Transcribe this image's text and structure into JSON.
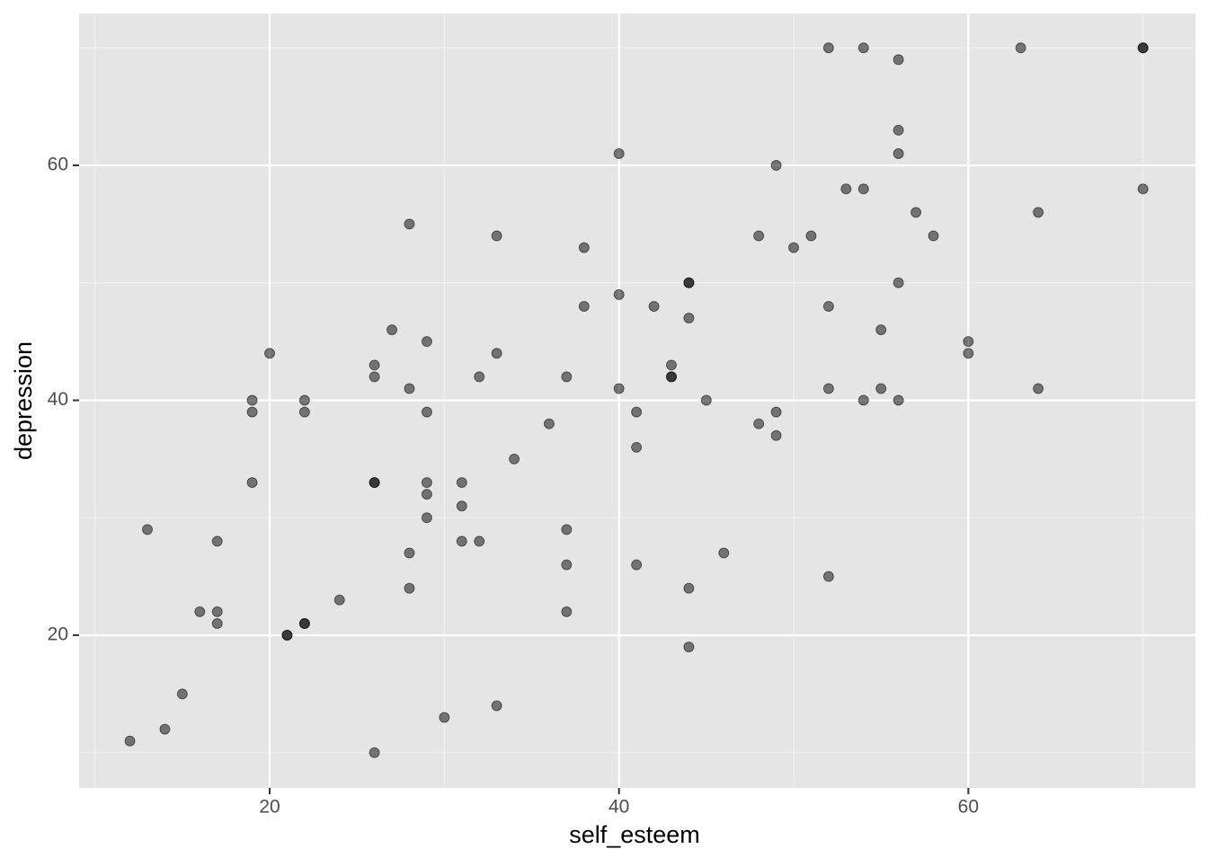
{
  "chart_data": {
    "type": "scatter",
    "x_label": "self_esteem",
    "y_label": "depression",
    "xlim": [
      9.09,
      73.0
    ],
    "ylim": [
      7.0,
      72.93
    ],
    "xticks": [
      20,
      40,
      60
    ],
    "yticks": [
      20,
      40,
      60
    ],
    "x_minor_grid": [
      10,
      30,
      50,
      70
    ],
    "y_minor_grid": [
      10,
      30,
      50,
      70
    ],
    "grid": true,
    "color": "#000000",
    "x": [
      12,
      13,
      14,
      15,
      16,
      17,
      17,
      17,
      19,
      19,
      19,
      20,
      21,
      21,
      22,
      22,
      22,
      22,
      24,
      26,
      26,
      26,
      26,
      26,
      27,
      28,
      28,
      28,
      28,
      29,
      29,
      29,
      29,
      29,
      30,
      31,
      31,
      31,
      32,
      32,
      33,
      33,
      33,
      34,
      36,
      37,
      37,
      37,
      37,
      38,
      38,
      40,
      40,
      40,
      41,
      41,
      41,
      42,
      43,
      43,
      43,
      44,
      44,
      44,
      44,
      44,
      45,
      46,
      48,
      48,
      49,
      49,
      49,
      50,
      51,
      52,
      52,
      52,
      52,
      53,
      54,
      54,
      54,
      55,
      55,
      56,
      56,
      56,
      56,
      56,
      57,
      58,
      60,
      60,
      63,
      64,
      64,
      70,
      70,
      70
    ],
    "y": [
      11,
      29,
      12,
      15,
      22,
      28,
      22,
      21,
      40,
      39,
      33,
      44,
      20,
      20,
      40,
      39,
      21,
      21,
      23,
      43,
      42,
      33,
      33,
      10,
      46,
      55,
      41,
      27,
      24,
      45,
      39,
      33,
      32,
      30,
      13,
      33,
      31,
      28,
      42,
      28,
      54,
      44,
      14,
      35,
      38,
      42,
      29,
      26,
      22,
      53,
      48,
      61,
      49,
      41,
      39,
      36,
      26,
      48,
      43,
      42,
      42,
      50,
      50,
      47,
      24,
      19,
      40,
      27,
      54,
      38,
      60,
      39,
      37,
      53,
      54,
      70,
      48,
      41,
      25,
      58,
      70,
      58,
      40,
      46,
      41,
      69,
      63,
      61,
      50,
      40,
      56,
      54,
      45,
      44,
      70,
      56,
      41,
      70,
      70,
      58
    ]
  }
}
